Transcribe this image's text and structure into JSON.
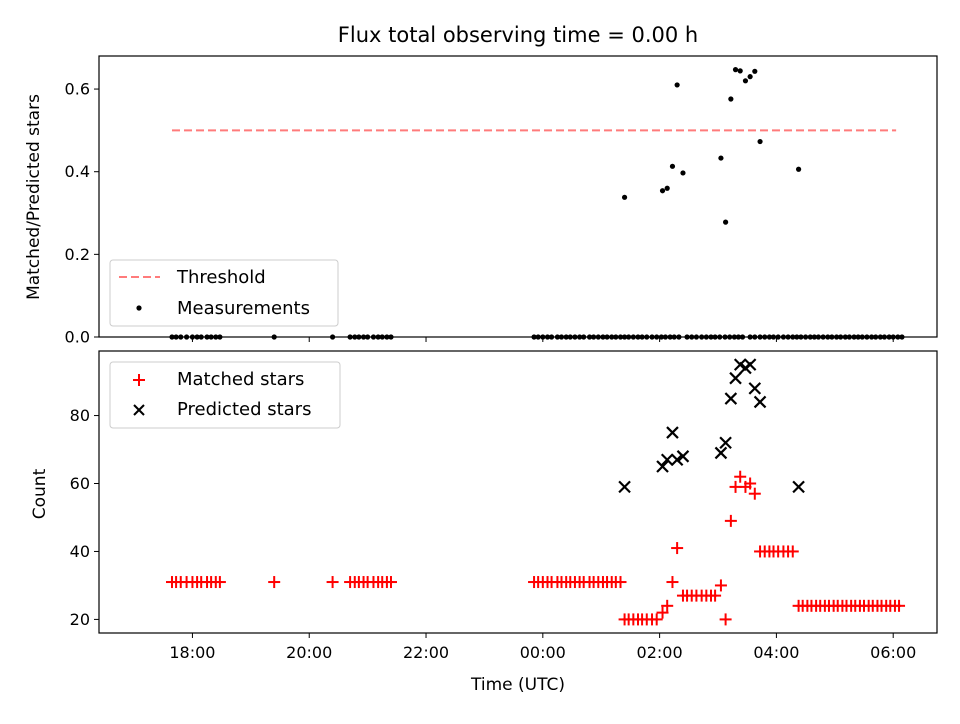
{
  "chart_data": [
    {
      "type": "scatter",
      "title": "Flux total observing time = 0.00 h",
      "ylabel": "Matched/Predicted stars",
      "xlim_hours": [
        16.4,
        30.75
      ],
      "ylim": [
        0.0,
        0.68
      ],
      "yticks": [
        0.0,
        0.2,
        0.4,
        0.6
      ],
      "ytick_labels": [
        "0.0",
        "0.2",
        "0.4",
        "0.6"
      ],
      "legend_position": "lower-left",
      "threshold": {
        "name": "Threshold",
        "y": 0.5,
        "x_start_hours": 17.65,
        "x_end_hours": 30.05,
        "color": "#ff7b7b"
      },
      "measurements": {
        "name": "Measurements",
        "color": "#000000",
        "zero_times_hours": [
          17.65,
          17.72,
          17.8,
          17.9,
          18.0,
          18.08,
          18.15,
          18.25,
          18.32,
          18.4,
          18.47,
          19.4,
          20.4,
          20.7,
          20.78,
          20.85,
          20.93,
          21.0,
          21.1,
          21.18,
          21.25,
          21.33,
          21.4,
          23.85,
          23.92,
          24.0,
          24.08,
          24.15,
          24.25,
          24.32,
          24.4,
          24.47,
          24.55,
          24.63,
          24.7,
          24.8,
          24.87,
          24.95,
          25.03,
          25.1,
          25.18,
          25.25,
          25.33,
          25.4,
          25.47,
          25.55,
          25.63,
          25.7,
          25.78,
          25.87,
          25.95,
          26.03,
          26.1,
          26.18,
          26.25,
          26.33,
          26.47,
          26.55,
          26.63,
          26.72,
          26.8,
          26.88,
          26.95,
          27.03,
          27.12,
          27.2,
          27.28,
          27.35,
          27.42,
          27.55,
          27.63,
          27.72,
          27.8,
          27.88,
          27.95,
          28.03,
          28.12,
          28.2,
          28.28,
          28.35,
          28.42,
          28.5,
          28.58,
          28.65,
          28.72,
          28.8,
          28.88,
          28.95,
          29.03,
          29.1,
          29.18,
          29.25,
          29.33,
          29.4,
          29.47,
          29.55,
          29.63,
          29.7,
          29.78,
          29.85,
          29.93,
          30.0,
          30.08,
          30.15
        ],
        "points": [
          {
            "x": 25.4,
            "y": 0.338
          },
          {
            "x": 26.05,
            "y": 0.354
          },
          {
            "x": 26.13,
            "y": 0.36
          },
          {
            "x": 26.22,
            "y": 0.413
          },
          {
            "x": 26.3,
            "y": 0.61
          },
          {
            "x": 26.4,
            "y": 0.397
          },
          {
            "x": 27.05,
            "y": 0.433
          },
          {
            "x": 27.13,
            "y": 0.278
          },
          {
            "x": 27.22,
            "y": 0.576
          },
          {
            "x": 27.3,
            "y": 0.647
          },
          {
            "x": 27.38,
            "y": 0.644
          },
          {
            "x": 27.47,
            "y": 0.62
          },
          {
            "x": 27.55,
            "y": 0.63
          },
          {
            "x": 27.63,
            "y": 0.643
          },
          {
            "x": 27.72,
            "y": 0.473
          },
          {
            "x": 28.38,
            "y": 0.406
          }
        ]
      }
    },
    {
      "type": "scatter",
      "xlabel": "Time (UTC)",
      "ylabel": "Count",
      "xlim_hours": [
        16.4,
        30.75
      ],
      "ylim": [
        16.0,
        99.0
      ],
      "xticks_hours": [
        18,
        20,
        22,
        24,
        26,
        28,
        30
      ],
      "xtick_labels": [
        "18:00",
        "20:00",
        "22:00",
        "00:00",
        "02:00",
        "04:00",
        "06:00"
      ],
      "yticks": [
        20,
        40,
        60,
        80
      ],
      "ytick_labels": [
        "20",
        "40",
        "60",
        "80"
      ],
      "legend_position": "upper-left",
      "series": [
        {
          "name": "Matched stars",
          "marker": "plus",
          "color": "#ff0000",
          "points": [
            {
              "x": 17.65,
              "y": 31
            },
            {
              "x": 17.72,
              "y": 31
            },
            {
              "x": 17.8,
              "y": 31
            },
            {
              "x": 17.9,
              "y": 31
            },
            {
              "x": 18.0,
              "y": 31
            },
            {
              "x": 18.08,
              "y": 31
            },
            {
              "x": 18.15,
              "y": 31
            },
            {
              "x": 18.25,
              "y": 31
            },
            {
              "x": 18.32,
              "y": 31
            },
            {
              "x": 18.4,
              "y": 31
            },
            {
              "x": 18.47,
              "y": 31
            },
            {
              "x": 19.4,
              "y": 31
            },
            {
              "x": 20.4,
              "y": 31
            },
            {
              "x": 20.7,
              "y": 31
            },
            {
              "x": 20.78,
              "y": 31
            },
            {
              "x": 20.85,
              "y": 31
            },
            {
              "x": 20.93,
              "y": 31
            },
            {
              "x": 21.0,
              "y": 31
            },
            {
              "x": 21.1,
              "y": 31
            },
            {
              "x": 21.18,
              "y": 31
            },
            {
              "x": 21.25,
              "y": 31
            },
            {
              "x": 21.33,
              "y": 31
            },
            {
              "x": 21.4,
              "y": 31
            },
            {
              "x": 23.85,
              "y": 31
            },
            {
              "x": 23.92,
              "y": 31
            },
            {
              "x": 24.0,
              "y": 31
            },
            {
              "x": 24.08,
              "y": 31
            },
            {
              "x": 24.15,
              "y": 31
            },
            {
              "x": 24.25,
              "y": 31
            },
            {
              "x": 24.32,
              "y": 31
            },
            {
              "x": 24.4,
              "y": 31
            },
            {
              "x": 24.47,
              "y": 31
            },
            {
              "x": 24.55,
              "y": 31
            },
            {
              "x": 24.63,
              "y": 31
            },
            {
              "x": 24.7,
              "y": 31
            },
            {
              "x": 24.8,
              "y": 31
            },
            {
              "x": 24.87,
              "y": 31
            },
            {
              "x": 24.95,
              "y": 31
            },
            {
              "x": 25.03,
              "y": 31
            },
            {
              "x": 25.1,
              "y": 31
            },
            {
              "x": 25.18,
              "y": 31
            },
            {
              "x": 25.25,
              "y": 31
            },
            {
              "x": 25.33,
              "y": 31
            },
            {
              "x": 25.4,
              "y": 20
            },
            {
              "x": 25.47,
              "y": 20
            },
            {
              "x": 25.55,
              "y": 20
            },
            {
              "x": 25.63,
              "y": 20
            },
            {
              "x": 25.7,
              "y": 20
            },
            {
              "x": 25.78,
              "y": 20
            },
            {
              "x": 25.87,
              "y": 20
            },
            {
              "x": 25.95,
              "y": 20
            },
            {
              "x": 26.05,
              "y": 22
            },
            {
              "x": 26.13,
              "y": 24
            },
            {
              "x": 26.22,
              "y": 31
            },
            {
              "x": 26.3,
              "y": 41
            },
            {
              "x": 26.4,
              "y": 27
            },
            {
              "x": 26.47,
              "y": 27
            },
            {
              "x": 26.55,
              "y": 27
            },
            {
              "x": 26.63,
              "y": 27
            },
            {
              "x": 26.72,
              "y": 27
            },
            {
              "x": 26.8,
              "y": 27
            },
            {
              "x": 26.88,
              "y": 27
            },
            {
              "x": 26.95,
              "y": 27
            },
            {
              "x": 27.05,
              "y": 30
            },
            {
              "x": 27.13,
              "y": 20
            },
            {
              "x": 27.22,
              "y": 49
            },
            {
              "x": 27.3,
              "y": 59
            },
            {
              "x": 27.38,
              "y": 62
            },
            {
              "x": 27.47,
              "y": 59
            },
            {
              "x": 27.55,
              "y": 60
            },
            {
              "x": 27.63,
              "y": 57
            },
            {
              "x": 27.72,
              "y": 40
            },
            {
              "x": 27.8,
              "y": 40
            },
            {
              "x": 27.88,
              "y": 40
            },
            {
              "x": 27.95,
              "y": 40
            },
            {
              "x": 28.03,
              "y": 40
            },
            {
              "x": 28.12,
              "y": 40
            },
            {
              "x": 28.2,
              "y": 40
            },
            {
              "x": 28.28,
              "y": 40
            },
            {
              "x": 28.38,
              "y": 24
            },
            {
              "x": 28.45,
              "y": 24
            },
            {
              "x": 28.53,
              "y": 24
            },
            {
              "x": 28.6,
              "y": 24
            },
            {
              "x": 28.68,
              "y": 24
            },
            {
              "x": 28.75,
              "y": 24
            },
            {
              "x": 28.83,
              "y": 24
            },
            {
              "x": 28.9,
              "y": 24
            },
            {
              "x": 28.98,
              "y": 24
            },
            {
              "x": 29.05,
              "y": 24
            },
            {
              "x": 29.13,
              "y": 24
            },
            {
              "x": 29.2,
              "y": 24
            },
            {
              "x": 29.28,
              "y": 24
            },
            {
              "x": 29.35,
              "y": 24
            },
            {
              "x": 29.43,
              "y": 24
            },
            {
              "x": 29.5,
              "y": 24
            },
            {
              "x": 29.58,
              "y": 24
            },
            {
              "x": 29.65,
              "y": 24
            },
            {
              "x": 29.73,
              "y": 24
            },
            {
              "x": 29.8,
              "y": 24
            },
            {
              "x": 29.88,
              "y": 24
            },
            {
              "x": 29.95,
              "y": 24
            },
            {
              "x": 30.03,
              "y": 24
            },
            {
              "x": 30.1,
              "y": 24
            }
          ]
        },
        {
          "name": "Predicted stars",
          "marker": "x",
          "color": "#000000",
          "points": [
            {
              "x": 25.4,
              "y": 59
            },
            {
              "x": 26.05,
              "y": 65
            },
            {
              "x": 26.13,
              "y": 67
            },
            {
              "x": 26.22,
              "y": 75
            },
            {
              "x": 26.3,
              "y": 67
            },
            {
              "x": 26.4,
              "y": 68
            },
            {
              "x": 27.05,
              "y": 69
            },
            {
              "x": 27.13,
              "y": 72
            },
            {
              "x": 27.22,
              "y": 85
            },
            {
              "x": 27.3,
              "y": 91
            },
            {
              "x": 27.38,
              "y": 95
            },
            {
              "x": 27.47,
              "y": 94
            },
            {
              "x": 27.55,
              "y": 95
            },
            {
              "x": 27.63,
              "y": 88
            },
            {
              "x": 27.72,
              "y": 84
            },
            {
              "x": 28.38,
              "y": 59
            }
          ]
        }
      ]
    }
  ]
}
